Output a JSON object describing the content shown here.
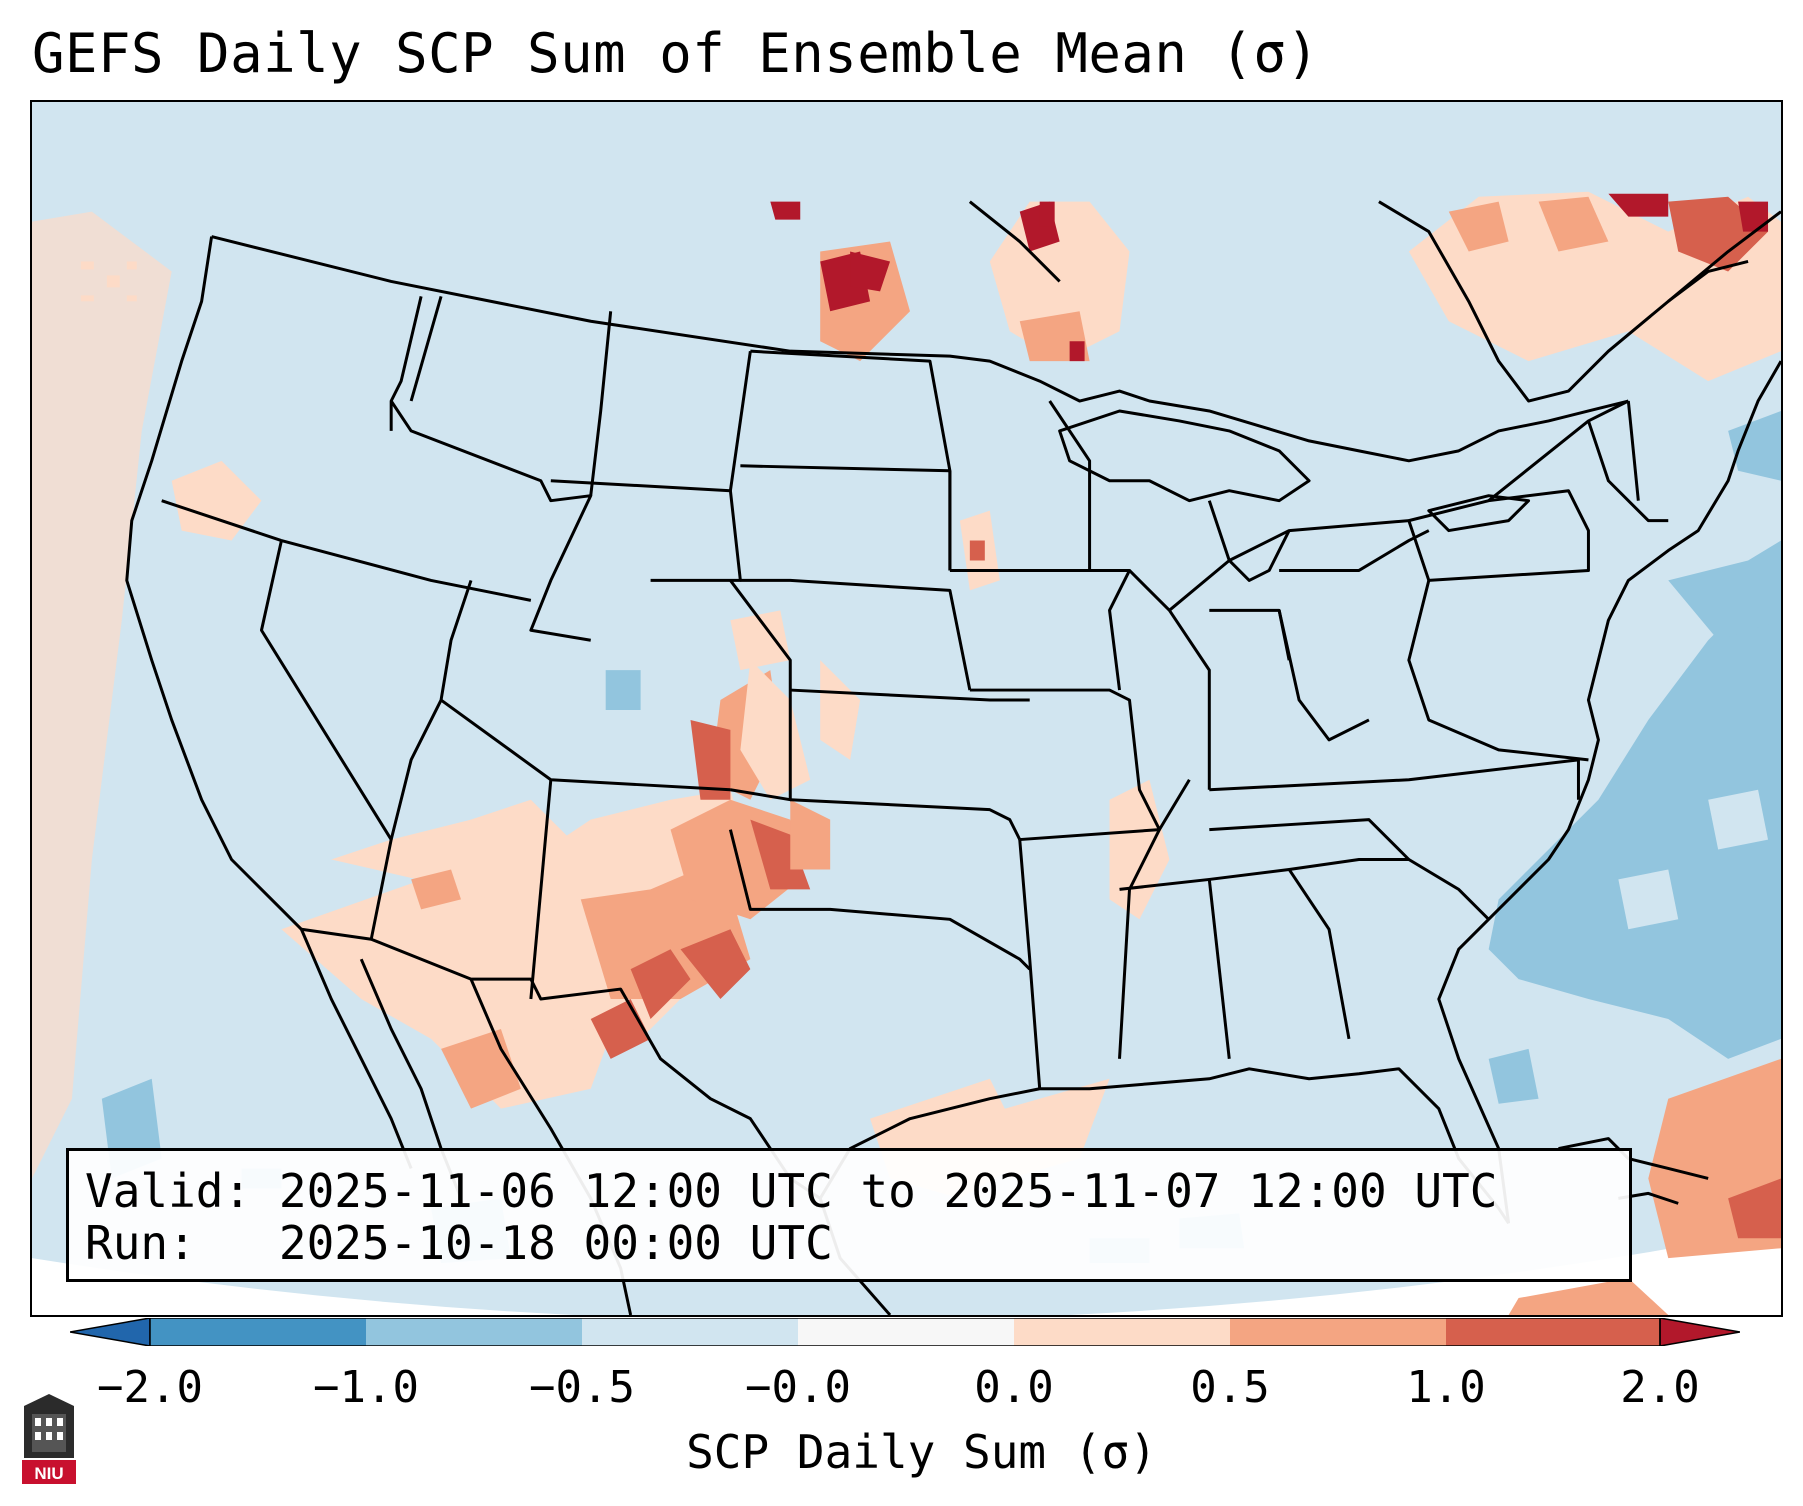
{
  "title": "GEFS Daily SCP Sum of Ensemble Mean (σ)",
  "map": {
    "region": "CONUS",
    "variable": "Daily SCP Sum of Ensemble Mean (σ)",
    "notable_areas": [
      {
        "area": "eastern New Mexico / west Texas",
        "category": "1.0 to 2.0"
      },
      {
        "area": "southern Colorado / Texas panhandle",
        "category": "0.5 to 1.0"
      },
      {
        "area": "southern Saskatchewan / Manitoba",
        "category": ">2.0"
      },
      {
        "area": "western Atlantic off Carolinas",
        "category": "-1.0 to -0.5"
      }
    ]
  },
  "info": {
    "valid_label": "Valid:",
    "valid_value": "2025-11-06 12:00 UTC to 2025-11-07 12:00 UTC",
    "run_label": "Run:",
    "run_value": "2025-10-18 00:00 UTC"
  },
  "colorbar": {
    "label": "SCP Daily Sum (σ)",
    "ticks": [
      "−2.0",
      "−1.0",
      "−0.5",
      "−0.0",
      "0.0",
      "0.5",
      "1.0",
      "2.0"
    ],
    "colors": {
      "under": "#2166ac",
      "b1": "#4393c3",
      "b2": "#92c5de",
      "b3": "#d1e5f0",
      "b4": "#fddbc7",
      "b5": "#f4a582",
      "b6": "#d6604d",
      "over": "#b2182b"
    }
  },
  "logo": {
    "text": "NIU"
  }
}
